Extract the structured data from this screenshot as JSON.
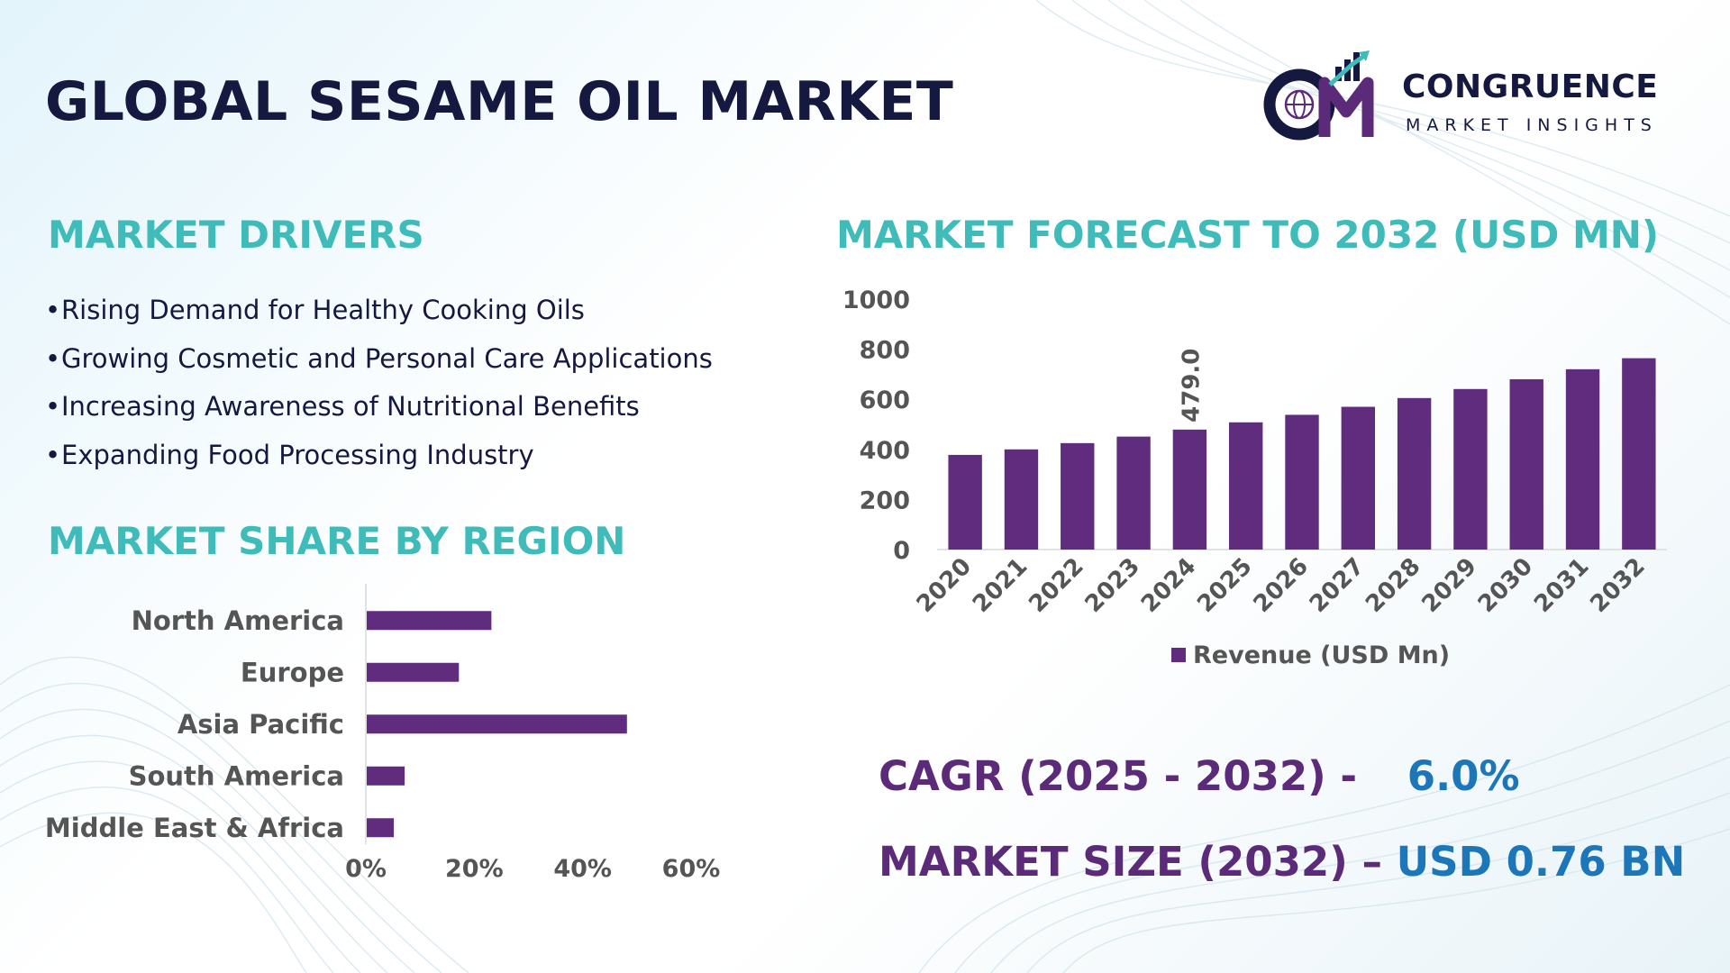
{
  "title": "GLOBAL SESAME OIL MARKET",
  "logo": {
    "name": "CONGRUENCE",
    "subtitle": "MARKET INSIGHTS",
    "mark_text": "CM",
    "colors": {
      "dark": "#15183f",
      "accent": "#5b2b7a",
      "growth": "#3fbcb9"
    }
  },
  "drivers": {
    "title": "MARKET DRIVERS",
    "bullet": "•",
    "items": [
      "Rising Demand for Healthy Cooking Oils",
      "Growing Cosmetic and Personal Care Applications",
      "Increasing Awareness of Nutritional Benefits",
      "Expanding Food Processing Industry"
    ]
  },
  "region": {
    "title": "MARKET SHARE BY REGION"
  },
  "forecast": {
    "title": "MARKET FORECAST TO 2032 (USD MN)"
  },
  "kpis": {
    "cagr_label": "CAGR (2025 - 2032) -",
    "cagr_value": "6.0%",
    "size_label": "MARKET SIZE (2032) –",
    "size_value": "USD 0.76 BN"
  },
  "colors": {
    "bar": "#5f2c7e",
    "teal_heading": "#3fbcb9",
    "navy_text": "#15183f",
    "kpi_label": "#5b2b7a",
    "kpi_value": "#1c76b8",
    "axis_text": "#555555"
  },
  "chart_data": [
    {
      "type": "bar",
      "orientation": "vertical",
      "title": "MARKET FORECAST TO 2032 (USD MN)",
      "categories": [
        "2020",
        "2021",
        "2022",
        "2023",
        "2024",
        "2025",
        "2026",
        "2027",
        "2028",
        "2029",
        "2030",
        "2031",
        "2032"
      ],
      "series": [
        {
          "name": "Revenue (USD Mn)",
          "values": [
            378,
            400,
            425,
            451,
            479,
            508,
            538,
            570,
            605,
            641,
            680,
            720,
            764
          ]
        }
      ],
      "data_labels": [
        {
          "category": "2024",
          "text": "479.0"
        }
      ],
      "ylim": [
        0,
        1000
      ],
      "yticks": [
        0,
        200,
        400,
        600,
        800,
        1000
      ],
      "legend": "bottom",
      "grid": false
    },
    {
      "type": "bar",
      "orientation": "horizontal",
      "title": "MARKET SHARE BY REGION",
      "categories": [
        "North America",
        "Europe",
        "Asia Pacific",
        "South America",
        "Middle East & Africa"
      ],
      "values": [
        23,
        17,
        48,
        7,
        5
      ],
      "unit": "%",
      "xlim": [
        0,
        60
      ],
      "xticks": [
        "0%",
        "20%",
        "40%",
        "60%"
      ],
      "grid": false
    }
  ]
}
